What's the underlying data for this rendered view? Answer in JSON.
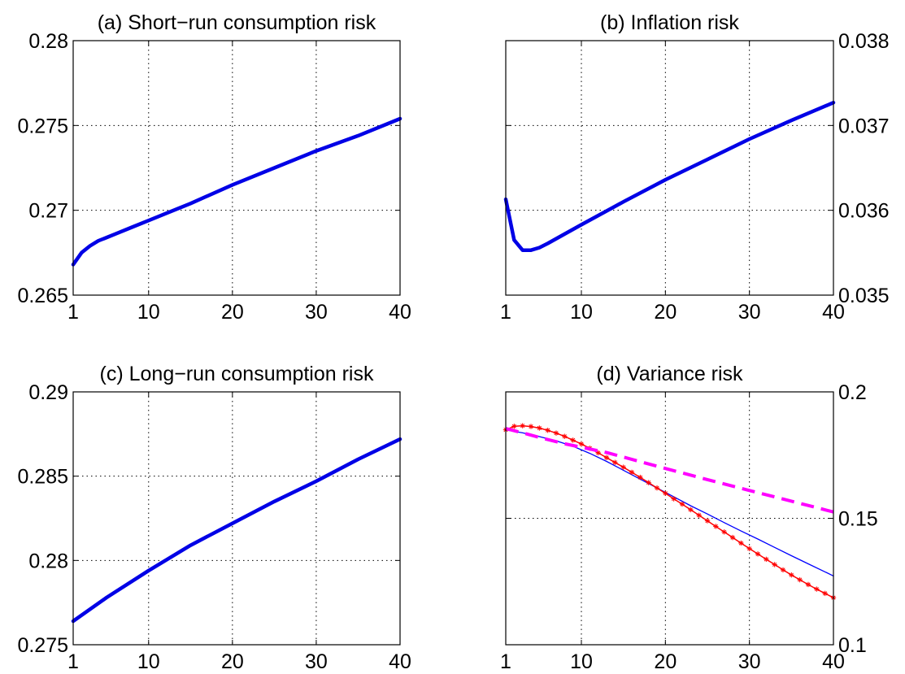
{
  "figure": {
    "colors": {
      "thick_blue": "#0000e6",
      "thin_blue": "#0000ff",
      "red": "#ff0000",
      "magenta": "#ff00ff",
      "marker": "#000000"
    }
  },
  "chart_data": [
    {
      "type": "line",
      "title": "(a) Short−run consumption risk",
      "yaxis_side": "left",
      "xlim": [
        1,
        40
      ],
      "ylim": [
        0.265,
        0.28
      ],
      "xticks": [
        1,
        10,
        20,
        30,
        40
      ],
      "xtick_labels": [
        "1",
        "10",
        "20",
        "30",
        "40"
      ],
      "yticks": [
        0.265,
        0.27,
        0.275,
        0.28
      ],
      "ytick_labels": [
        "0.265",
        "0.27",
        "0.275",
        "0.28"
      ],
      "grid": true,
      "series": [
        {
          "style": "thick-blue",
          "x": [
            1,
            2,
            3,
            4,
            5,
            6,
            8,
            10,
            12,
            15,
            20,
            25,
            30,
            35,
            40
          ],
          "y": [
            0.2668,
            0.2675,
            0.2679,
            0.2682,
            0.2684,
            0.2686,
            0.269,
            0.2694,
            0.2698,
            0.2704,
            0.2715,
            0.2725,
            0.2735,
            0.2744,
            0.2754
          ]
        }
      ]
    },
    {
      "type": "line",
      "title": "(b) Inflation risk",
      "yaxis_side": "right",
      "xlim": [
        1,
        40
      ],
      "ylim": [
        0.035,
        0.038
      ],
      "xticks": [
        1,
        10,
        20,
        30,
        40
      ],
      "xtick_labels": [
        "1",
        "10",
        "20",
        "30",
        "40"
      ],
      "yticks": [
        0.035,
        0.036,
        0.037,
        0.038
      ],
      "ytick_labels": [
        "0.035",
        "0.036",
        "0.037",
        "0.038"
      ],
      "grid": true,
      "series": [
        {
          "style": "thick-blue",
          "x": [
            1,
            2,
            3,
            4,
            5,
            6,
            8,
            10,
            15,
            20,
            25,
            30,
            35,
            40
          ],
          "y": [
            0.03613,
            0.03565,
            0.03553,
            0.03553,
            0.03556,
            0.03561,
            0.03572,
            0.03583,
            0.0361,
            0.03636,
            0.0366,
            0.03684,
            0.03706,
            0.03727
          ]
        }
      ]
    },
    {
      "type": "line",
      "title": "(c) Long−run consumption risk",
      "yaxis_side": "left",
      "xlim": [
        1,
        40
      ],
      "ylim": [
        0.275,
        0.29
      ],
      "xticks": [
        1,
        10,
        20,
        30,
        40
      ],
      "xtick_labels": [
        "1",
        "10",
        "20",
        "30",
        "40"
      ],
      "yticks": [
        0.275,
        0.28,
        0.285,
        0.29
      ],
      "ytick_labels": [
        "0.275",
        "0.28",
        "0.285",
        "0.29"
      ],
      "grid": true,
      "series": [
        {
          "style": "thick-blue",
          "x": [
            1,
            5,
            10,
            15,
            20,
            25,
            30,
            35,
            40
          ],
          "y": [
            0.2764,
            0.2778,
            0.2794,
            0.2809,
            0.2822,
            0.2835,
            0.2847,
            0.286,
            0.2872
          ]
        }
      ]
    },
    {
      "type": "line",
      "title": "(d) Variance risk",
      "yaxis_side": "right",
      "xlim": [
        1,
        40
      ],
      "ylim": [
        0.1,
        0.2
      ],
      "xticks": [
        1,
        10,
        20,
        30,
        40
      ],
      "xtick_labels": [
        "1",
        "10",
        "20",
        "30",
        "40"
      ],
      "yticks": [
        0.1,
        0.15,
        0.2
      ],
      "ytick_labels": [
        "0.1",
        "0.15",
        "0.2"
      ],
      "grid": true,
      "series": [
        {
          "style": "thin-blue",
          "x": [
            1,
            3,
            5,
            7,
            9,
            11,
            13,
            15,
            17,
            19,
            21,
            23,
            25,
            27,
            29,
            31,
            33,
            35,
            37,
            39,
            40
          ],
          "y": [
            0.185,
            0.1838,
            0.1823,
            0.1806,
            0.1785,
            0.1757,
            0.1725,
            0.169,
            0.1655,
            0.162,
            0.1585,
            0.155,
            0.1517,
            0.1483,
            0.145,
            0.1418,
            0.1385,
            0.1352,
            0.132,
            0.1288,
            0.1272
          ]
        },
        {
          "style": "red-starred",
          "x": [
            1,
            2,
            3,
            4,
            5,
            6,
            7,
            8,
            9,
            10,
            11,
            12,
            13,
            14,
            15,
            16,
            17,
            18,
            19,
            20,
            21,
            22,
            23,
            24,
            25,
            26,
            27,
            28,
            29,
            30,
            31,
            32,
            33,
            34,
            35,
            36,
            37,
            38,
            39,
            40
          ],
          "y": [
            0.185,
            0.1864,
            0.1866,
            0.1863,
            0.1857,
            0.1848,
            0.1837,
            0.1824,
            0.1809,
            0.1794,
            0.1777,
            0.1759,
            0.174,
            0.1721,
            0.1702,
            0.1682,
            0.1662,
            0.1641,
            0.162,
            0.1599,
            0.1577,
            0.1556,
            0.1534,
            0.1512,
            0.149,
            0.1468,
            0.1446,
            0.1424,
            0.1402,
            0.138,
            0.1359,
            0.1338,
            0.1317,
            0.1296,
            0.1276,
            0.1257,
            0.1238,
            0.122,
            0.1203,
            0.1186
          ]
        },
        {
          "style": "magenta-dashed",
          "x": [
            1,
            3,
            5,
            8,
            10,
            13,
            15,
            20,
            25,
            30,
            35,
            40
          ],
          "y": [
            0.1855,
            0.1838,
            0.182,
            0.1795,
            0.1781,
            0.176,
            0.1742,
            0.1697,
            0.1653,
            0.161,
            0.1568,
            0.1525
          ]
        }
      ]
    }
  ]
}
